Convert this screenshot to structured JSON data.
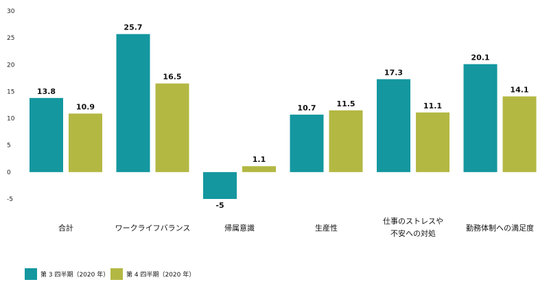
{
  "chart_data": {
    "type": "bar",
    "categories": [
      [
        "合計"
      ],
      [
        "ワークライフバランス"
      ],
      [
        "帰属意識"
      ],
      [
        "生産性"
      ],
      [
        "仕事のストレスや",
        "不安への対処"
      ],
      [
        "勤務体制への満足度"
      ]
    ],
    "series": [
      {
        "name": "第 3 四半期（2020 年）",
        "color": "#14979f",
        "values": [
          13.8,
          25.7,
          -5,
          10.7,
          17.3,
          20.1
        ],
        "labels": [
          "13.8",
          "25.7",
          "-5",
          "10.7",
          "17.3",
          "20.1"
        ]
      },
      {
        "name": "第 4 四半期（2020 年）",
        "color": "#b3b843",
        "values": [
          10.9,
          16.5,
          1.1,
          11.5,
          11.1,
          14.1
        ],
        "labels": [
          "10.9",
          "16.5",
          "1.1",
          "11.5",
          "11.1",
          "14.1"
        ]
      }
    ],
    "y_ticks": [
      "30",
      "25",
      "20",
      "15",
      "10",
      "5",
      "0",
      "-5"
    ],
    "ylim": [
      -5,
      30
    ],
    "grid": false,
    "legend_position": "bottom-left"
  }
}
